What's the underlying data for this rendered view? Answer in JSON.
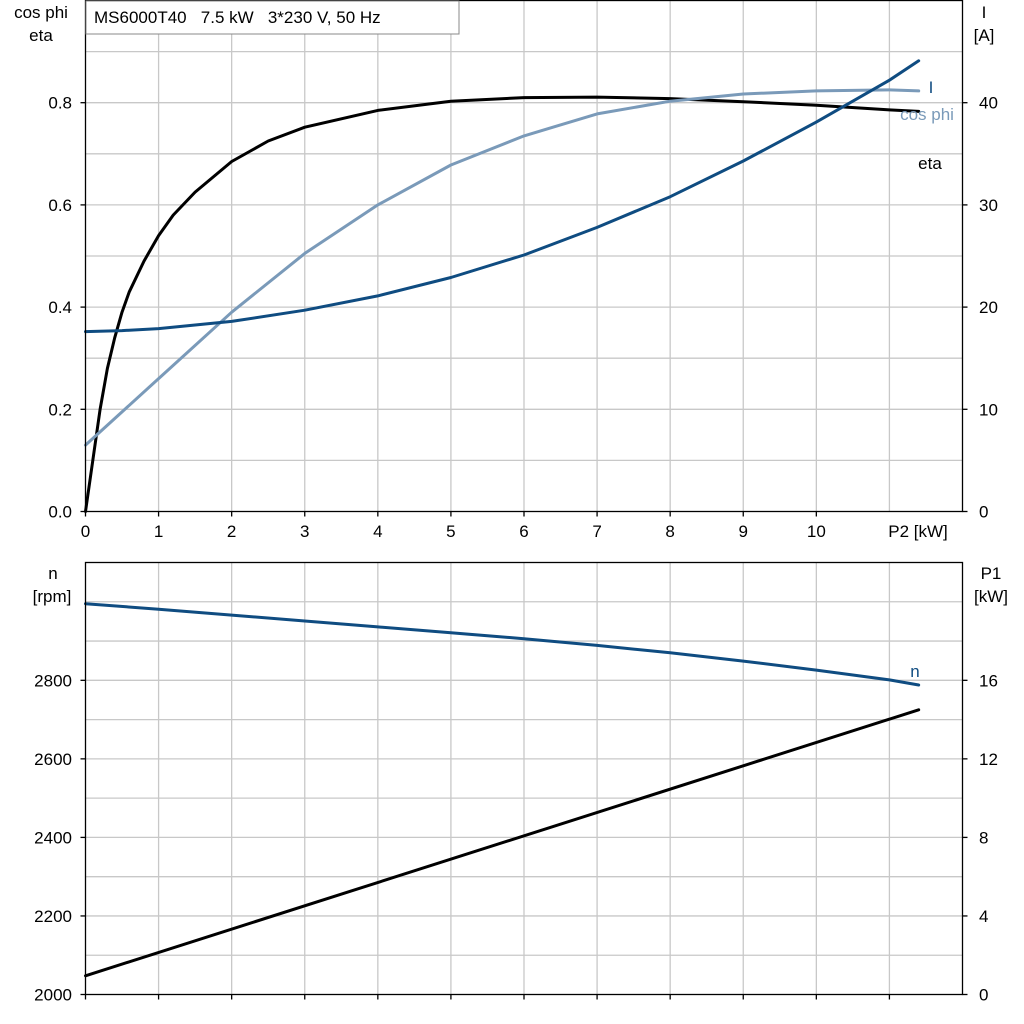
{
  "chart_data": [
    {
      "type": "line",
      "title": "MS6000T40   7.5 kW   3*230 V, 50 Hz",
      "xlabel": "P2 [kW]",
      "ylabel_left": [
        "cos phi",
        "eta"
      ],
      "ylabel_right": [
        "I",
        "[A]"
      ],
      "xlim": [
        0,
        12
      ],
      "ylim_left": [
        0,
        1.0
      ],
      "ylim_right": [
        0,
        50
      ],
      "x_ticks": [
        "0",
        "1",
        "2",
        "3",
        "4",
        "5",
        "6",
        "7",
        "8",
        "9",
        "10"
      ],
      "y_left_ticks": [
        "0.0",
        "0.2",
        "0.4",
        "0.6",
        "0.8"
      ],
      "y_right_ticks": [
        "0",
        "10",
        "20",
        "30",
        "40"
      ],
      "grid": true,
      "series": [
        {
          "name": "eta",
          "axis": "left",
          "color": "#000000",
          "x": [
            0,
            0.1,
            0.2,
            0.3,
            0.4,
            0.5,
            0.6,
            0.8,
            1.0,
            1.2,
            1.5,
            2.0,
            2.5,
            3.0,
            4.0,
            5.0,
            6.0,
            7.0,
            8.0,
            9.0,
            10.0,
            11.0,
            11.4
          ],
          "y": [
            0.0,
            0.1,
            0.2,
            0.28,
            0.34,
            0.39,
            0.43,
            0.49,
            0.54,
            0.58,
            0.625,
            0.685,
            0.725,
            0.752,
            0.785,
            0.803,
            0.81,
            0.811,
            0.808,
            0.802,
            0.795,
            0.786,
            0.783
          ]
        },
        {
          "name": "cos phi",
          "axis": "left",
          "color": "#7a9ab9",
          "x": [
            0,
            1,
            2,
            3,
            4,
            5,
            6,
            7,
            8,
            9,
            10,
            11,
            11.4
          ],
          "y": [
            0.13,
            0.26,
            0.39,
            0.505,
            0.6,
            0.678,
            0.735,
            0.778,
            0.803,
            0.817,
            0.823,
            0.825,
            0.823
          ]
        },
        {
          "name": "I",
          "axis": "right",
          "color": "#0f4c81",
          "x": [
            0,
            0.5,
            1,
            2,
            3,
            4,
            5,
            6,
            7,
            8,
            9,
            10,
            11,
            11.4
          ],
          "y": [
            17.6,
            17.7,
            17.9,
            18.6,
            19.7,
            21.1,
            22.9,
            25.1,
            27.8,
            30.8,
            34.3,
            38.1,
            42.2,
            44.1
          ]
        }
      ]
    },
    {
      "type": "line",
      "ylabel_left": [
        "n",
        "[rpm]"
      ],
      "ylabel_right": [
        "P1",
        "[kW]"
      ],
      "xlim": [
        0,
        12
      ],
      "ylim_left": [
        2000,
        3100
      ],
      "ylim_right": [
        0,
        22
      ],
      "y_left_ticks": [
        "2000",
        "2200",
        "2400",
        "2600",
        "2800"
      ],
      "y_right_ticks": [
        "0",
        "4",
        "8",
        "12",
        "16"
      ],
      "grid": true,
      "series": [
        {
          "name": "n",
          "axis": "left",
          "color": "#0f4c81",
          "x": [
            0,
            1,
            2,
            3,
            4,
            5,
            6,
            7,
            8,
            9,
            10,
            11,
            11.4
          ],
          "y": [
            2995,
            2981,
            2966,
            2951,
            2936,
            2921,
            2906,
            2889,
            2870,
            2849,
            2826,
            2801,
            2788
          ]
        },
        {
          "name": "",
          "axis": "right",
          "color": "#000000",
          "x": [
            0,
            11.4
          ],
          "y": [
            0.95,
            14.5
          ]
        }
      ]
    }
  ]
}
